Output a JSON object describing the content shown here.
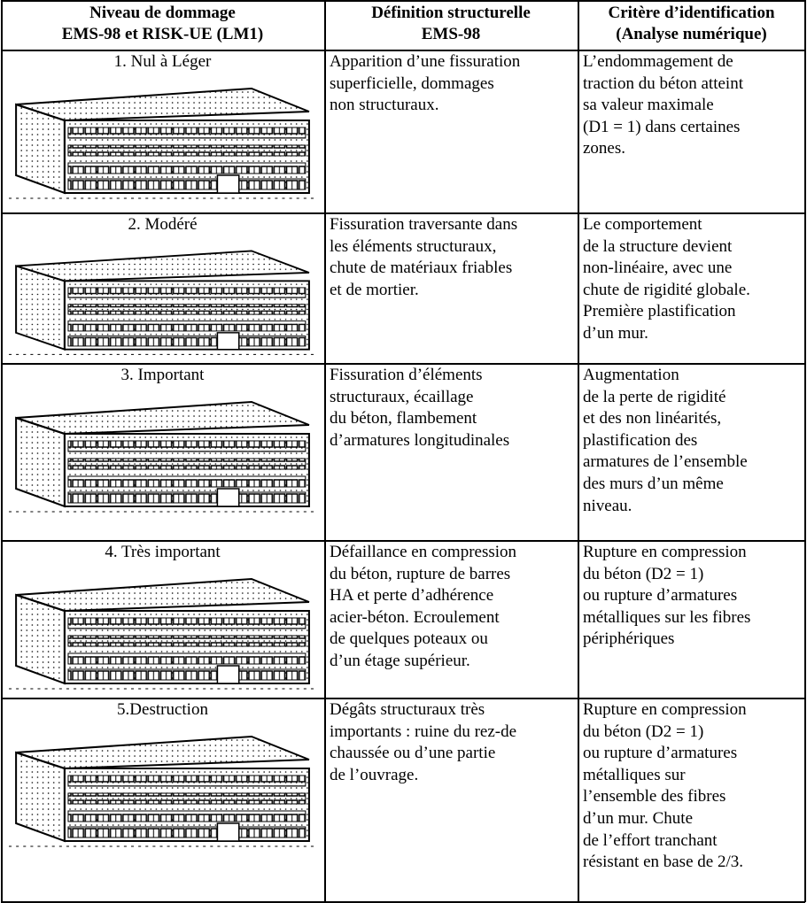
{
  "table": {
    "header": [
      [
        "Niveau de dommage",
        "EMS-98 et RISK-UE (LM1)"
      ],
      [
        "Définition structurelle",
        "EMS-98"
      ],
      [
        "Critère d’identification",
        "(Analyse numérique)"
      ]
    ],
    "rows": [
      {
        "level": "1. Nul à Léger",
        "definition": [
          "Apparition d’une fissuration",
          "superficielle, dommages",
          "non structuraux."
        ],
        "criterion": [
          "L’endommagement de",
          "traction du béton atteint",
          "sa valeur maximale",
          "(D1 = 1) dans certaines",
          "zones."
        ]
      },
      {
        "level": "2. Modéré",
        "definition": [
          "Fissuration traversante dans",
          "les éléments structuraux,",
          "chute de matériaux friables",
          "et de mortier."
        ],
        "criterion": [
          "Le comportement",
          "de la structure devient",
          "non-linéaire, avec une",
          "chute de rigidité globale.",
          "Première plastification",
          "d’un mur."
        ]
      },
      {
        "level": "3. Important",
        "definition": [
          "Fissuration d’éléments",
          "structuraux, écaillage",
          "du béton, flambement",
          "d’armatures longitudinales"
        ],
        "criterion": [
          "Augmentation",
          "de la perte de rigidité",
          "et des non linéarités,",
          "plastification des",
          "armatures de l’ensemble",
          "des murs d’un même",
          "niveau."
        ]
      },
      {
        "level": "4. Très important",
        "definition": [
          "Défaillance en compression",
          "du béton, rupture de barres",
          "HA et perte d’adhérence",
          "acier-béton. Ecroulement",
          "de quelques poteaux ou",
          "d’un étage supérieur."
        ],
        "criterion": [
          "Rupture en compression",
          "du béton (D2 = 1)",
          "ou rupture d’armatures",
          "métalliques sur les fibres",
          "périphériques"
        ]
      },
      {
        "level": "5.Destruction",
        "definition": [
          "Dégâts structuraux très",
          "importants : ruine du rez-de",
          "chaussée ou d’une partie",
          "de l’ouvrage."
        ],
        "criterion": [
          "Rupture en compression",
          "du béton (D2 = 1)",
          "ou rupture d’armatures",
          "métalliques sur",
          "l’ensemble des fibres",
          "d’un mur. Chute",
          "de l’effort tranchant",
          "résistant en base de 2/3."
        ]
      }
    ]
  }
}
